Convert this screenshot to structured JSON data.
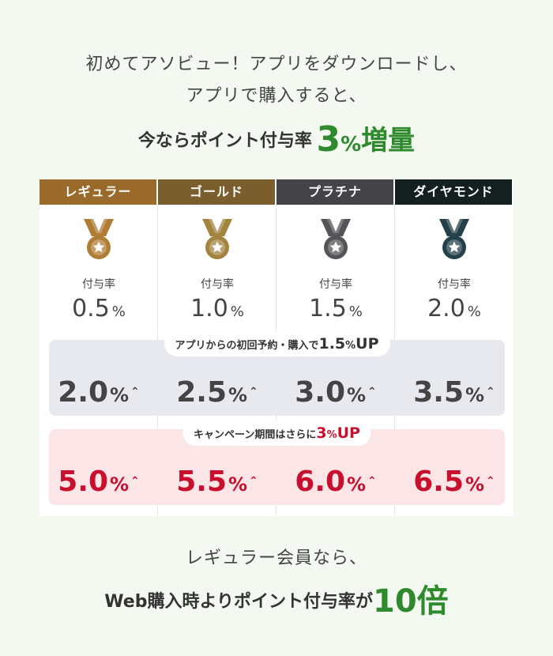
{
  "intro": {
    "line1": "初めてアソビュー！アプリをダウンロードし、",
    "line2": "アプリで購入すると、"
  },
  "headline": {
    "prefix": "今ならポイント付与率",
    "value": "3",
    "unit": "%",
    "suffix": "増量"
  },
  "tiers": [
    {
      "name": "レギュラー",
      "color": "#9a6a2a",
      "medal_color": "#b07d35",
      "rate_label": "付与率",
      "rate": "0.5",
      "unit": "%"
    },
    {
      "name": "ゴールド",
      "color": "#7a5e2d",
      "medal_color": "#a3843f",
      "rate_label": "付与率",
      "rate": "1.0",
      "unit": "%"
    },
    {
      "name": "プラチナ",
      "color": "#444448",
      "medal_color": "#555559",
      "rate_label": "付与率",
      "rate": "1.5",
      "unit": "%"
    },
    {
      "name": "ダイヤモンド",
      "color": "#142020",
      "medal_color": "#24404a",
      "rate_label": "付与率",
      "rate": "2.0",
      "unit": "%"
    }
  ],
  "app_bonus": {
    "label": "アプリからの初回予約・購入で",
    "value": "1.5",
    "unit": "%",
    "up": "UP",
    "values": [
      "2.0",
      "2.5",
      "3.0",
      "3.5"
    ],
    "value_unit": "%",
    "arrow_icon": "double-chevron-up"
  },
  "campaign": {
    "label": "キャンペーン期間はさらに",
    "value": "3",
    "unit": "%",
    "up": "UP",
    "values": [
      "5.0",
      "5.5",
      "6.0",
      "6.5"
    ],
    "value_unit": "%",
    "arrow_icon": "double-chevron-up"
  },
  "outro": {
    "line1": "レギュラー会員なら、",
    "line2_prefix": "Web購入時よりポイント付与率が",
    "line2_value": "10倍"
  },
  "colors": {
    "accent_green": "#2e8a2c",
    "accent_red": "#c8102e",
    "background": "#f3f8f1"
  }
}
